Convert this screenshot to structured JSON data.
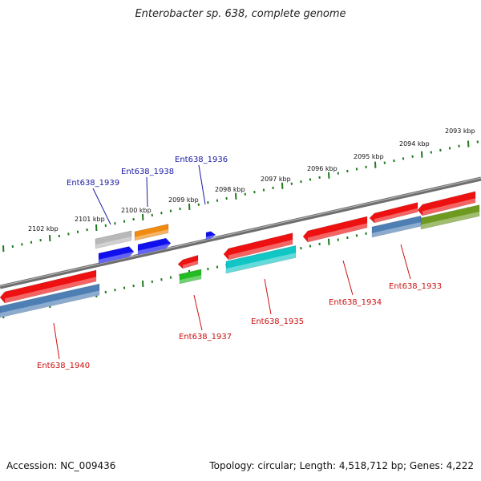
{
  "title": "Enterobacter sp. 638, complete genome",
  "footer": {
    "accession": "Accession: NC_009436",
    "topology": "Topology: circular; Length: 4,518,712 bp; Genes: 4,222"
  },
  "scale_labels": [
    "2093 kbp",
    "2094 kbp",
    "2095 kbp",
    "2096 kbp",
    "2097 kbp",
    "2098 kbp",
    "2099 kbp",
    "2100 kbp",
    "2101 kbp",
    "2102 kbp"
  ],
  "gene_labels": [
    {
      "text": "Ent638_1936",
      "color": "#1a1aa6"
    },
    {
      "text": "Ent638_1938",
      "color": "#1a1aa6"
    },
    {
      "text": "Ent638_1939",
      "color": "#1a1aa6"
    },
    {
      "text": "Ent638_1937",
      "color": "#cc1111"
    },
    {
      "text": "Ent638_1935",
      "color": "#cc1111"
    },
    {
      "text": "Ent638_1934",
      "color": "#cc1111"
    },
    {
      "text": "Ent638_1933",
      "color": "#cc1111"
    },
    {
      "text": "Ent638_1940",
      "color": "#cc1111"
    }
  ],
  "colors": {
    "backbone": "#7a7a7a",
    "scale_ticks": "#1e7a1e",
    "cds_red": "#ee1111",
    "cds_blue": "#1010ee",
    "cds_steelblue": "#4d7fb5",
    "cds_grey": "#b8b8b8",
    "cds_orange": "#f08a10",
    "cds_green": "#22bb22",
    "cds_cyan": "#12c6c6",
    "cds_olive": "#6f9a22"
  }
}
